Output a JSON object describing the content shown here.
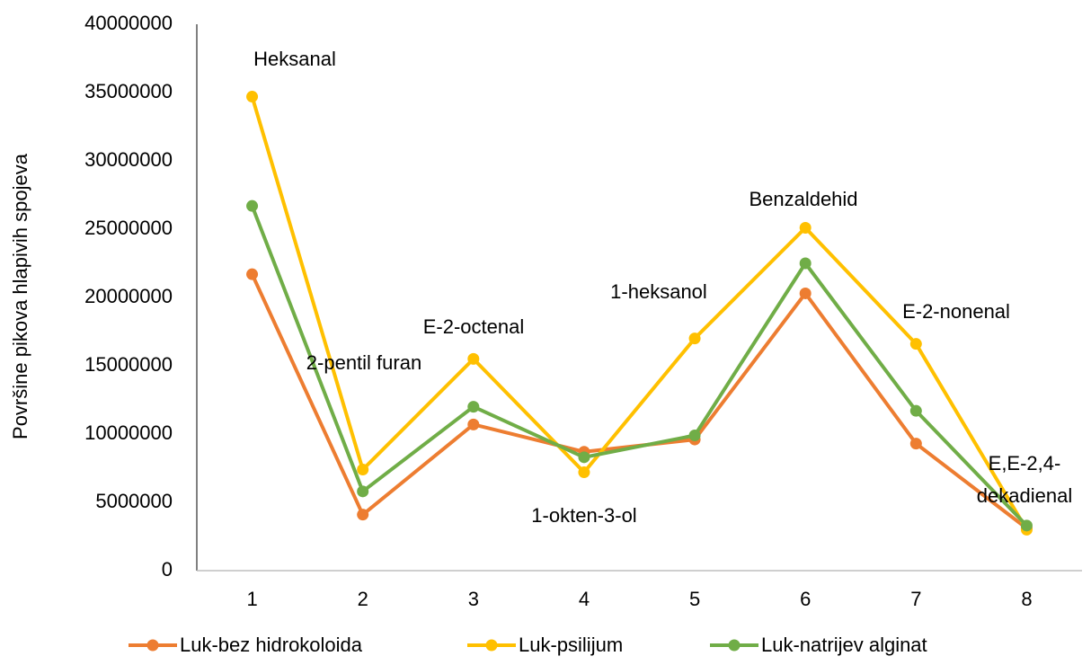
{
  "chart_data": {
    "type": "line",
    "y_label": "Površine pikova hlapivih spojeva",
    "categories": [
      "1",
      "2",
      "3",
      "4",
      "5",
      "6",
      "7",
      "8"
    ],
    "series": [
      {
        "name": "Luk-bez hidrokoloida",
        "color": "#ed7d31",
        "values": [
          21700000,
          4100000,
          10700000,
          8700000,
          9600000,
          20300000,
          9300000,
          3100000
        ]
      },
      {
        "name": "Luk-psilijum",
        "color": "#ffc000",
        "values": [
          34700000,
          7400000,
          15500000,
          7200000,
          17000000,
          25100000,
          16600000,
          3000000
        ]
      },
      {
        "name": "Luk-natrijev alginat",
        "color": "#70ad47",
        "values": [
          26700000,
          5800000,
          12000000,
          8300000,
          9900000,
          22500000,
          11700000,
          3300000
        ]
      }
    ],
    "annotations": [
      "Heksanal",
      "2-pentil furan",
      "E-2-octenal",
      "1-okten-3-ol",
      "1-heksanol",
      "Benzaldehid",
      "E-2-nonenal",
      "E,E-2,4-",
      "dekadienal"
    ],
    "ylim": [
      0,
      40000000
    ],
    "yticks": [
      0,
      5000000,
      10000000,
      15000000,
      20000000,
      25000000,
      30000000,
      35000000,
      40000000
    ],
    "grid": false
  }
}
